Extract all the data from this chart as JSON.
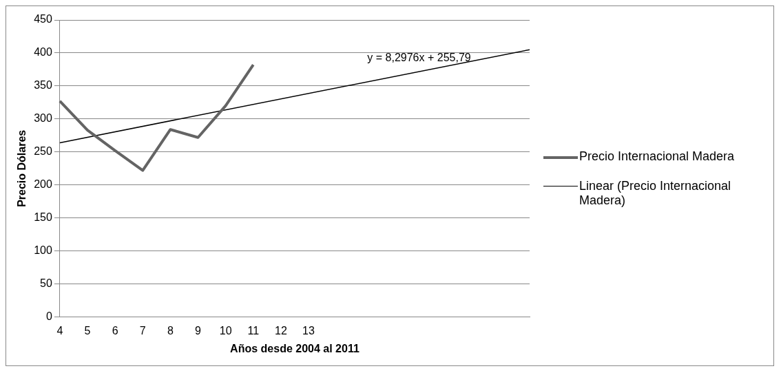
{
  "chart_data": {
    "type": "line",
    "xlabel": "Años desde 2004 al 2011",
    "ylabel": "Precio Dólares",
    "categories": [
      "4",
      "5",
      "6",
      "7",
      "8",
      "9",
      "10",
      "11",
      "12",
      "13",
      null,
      null,
      null,
      null,
      null,
      null,
      null,
      null
    ],
    "series": [
      {
        "name": "Precio Internacional Madera",
        "color": "#646464",
        "values": [
          327,
          283,
          252,
          222,
          284,
          272,
          320,
          382,
          null,
          null,
          null,
          null,
          null,
          null,
          null,
          null,
          null,
          null
        ]
      },
      {
        "name": "Linear (Precio Internacional Madera)",
        "color": "#000000",
        "values": [
          264,
          null,
          null,
          null,
          null,
          null,
          null,
          null,
          null,
          null,
          null,
          null,
          null,
          null,
          null,
          null,
          null,
          405
        ]
      }
    ],
    "ylim": [
      0,
      450
    ],
    "yticks": [
      0,
      50,
      100,
      150,
      200,
      250,
      300,
      350,
      400,
      450
    ],
    "grid": "y",
    "legend": "right",
    "marker": "none",
    "annotations": [
      "y = 8,2976x + 255,79"
    ]
  }
}
